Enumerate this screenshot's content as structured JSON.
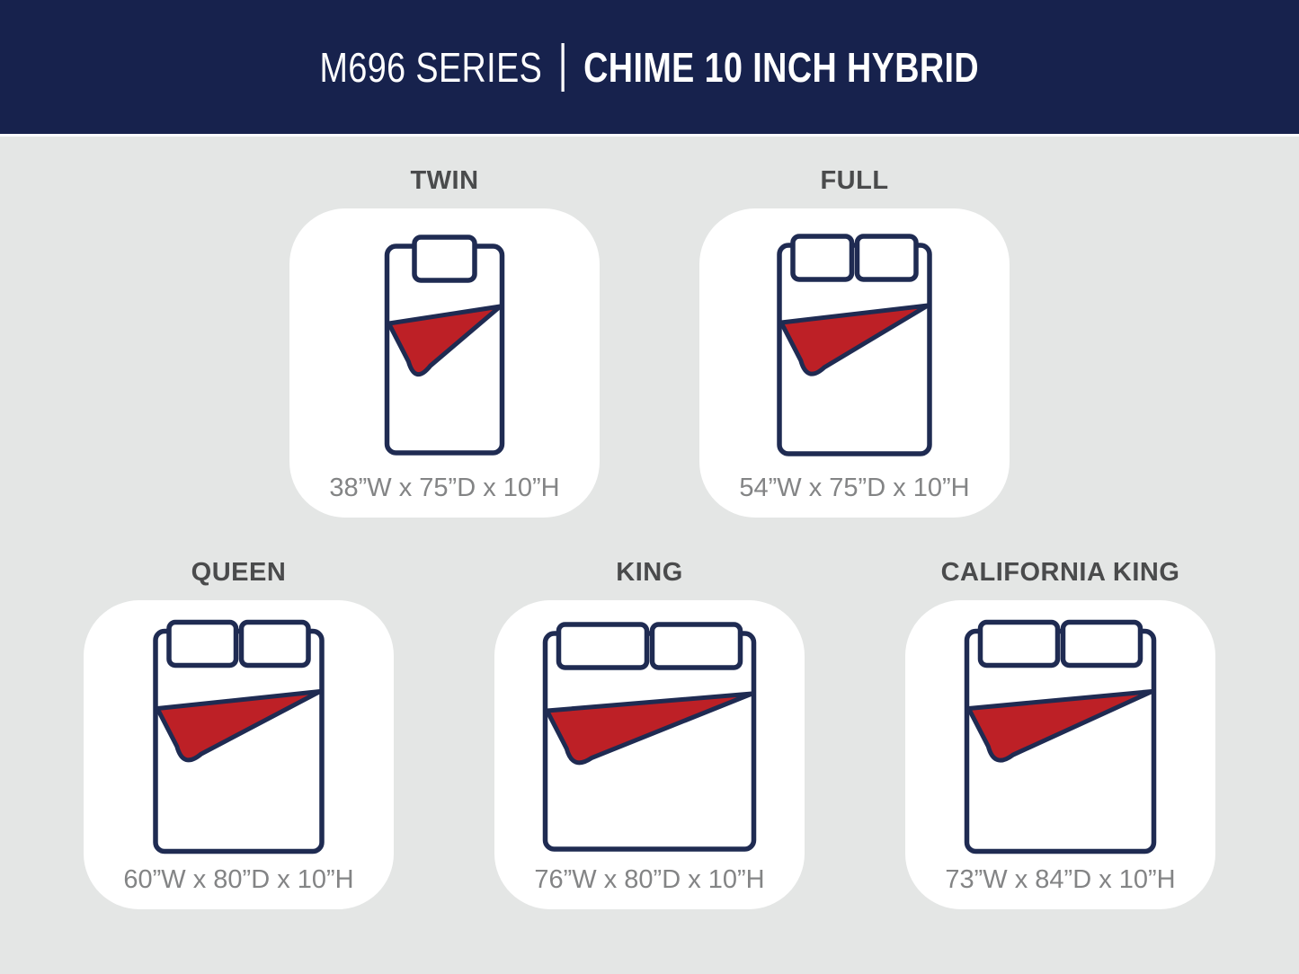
{
  "header": {
    "series": "M696 SERIES",
    "separator": "|",
    "product": "CHIME 10 INCH HYBRID"
  },
  "colors": {
    "header_bg": "#17224d",
    "background": "#e4e6e5",
    "card_bg": "#ffffff",
    "outline_navy": "#1f2b52",
    "blanket_red": "#bd2026",
    "label_gray": "#4a4b4c",
    "dims_gray": "#838485"
  },
  "sizes": {
    "items": [
      {
        "label": "TWIN",
        "dimensions": "38”W x 75”D x 10”H",
        "pillows": 1,
        "icon": {
          "mattress_width": 128,
          "mattress_height": 230
        }
      },
      {
        "label": "FULL",
        "dimensions": "54”W x 75”D x 10”H",
        "pillows": 2,
        "icon": {
          "mattress_width": 167,
          "mattress_height": 232
        }
      },
      {
        "label": "QUEEN",
        "dimensions": "60”W x 80”D x 10”H",
        "pillows": 2,
        "icon": {
          "mattress_width": 185,
          "mattress_height": 245
        }
      },
      {
        "label": "KING",
        "dimensions": "76”W x 80”D x 10”H",
        "pillows": 2,
        "icon": {
          "mattress_width": 232,
          "mattress_height": 240
        }
      },
      {
        "label": "CALIFORNIA KING",
        "dimensions": "73”W x 84”D x 10”H",
        "pillows": 2,
        "icon": {
          "mattress_width": 208,
          "mattress_height": 245
        }
      }
    ]
  }
}
